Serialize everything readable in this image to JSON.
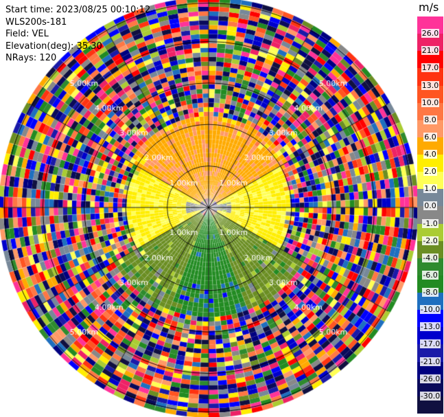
{
  "info": {
    "start_time": "Start time: 2023/08/25 00:10:12",
    "instrument": "WLS200s-181",
    "field": "Field: VEL",
    "elevation": "Elevation(deg): 35.30",
    "nrays": "NRays: 120"
  },
  "range_rings": [
    "1.00km",
    "2.00km",
    "3.00km",
    "4.00km",
    "5.00km"
  ],
  "legend": {
    "unit": "m/s",
    "ticks": [
      "26.0",
      "21.0",
      "17.0",
      "13.0",
      "10.0",
      "8.0",
      "6.0",
      "4.0",
      "2.0",
      "1.0",
      "0.0",
      "-1.0",
      "-2.0",
      "-4.0",
      "-6.0",
      "-8.0",
      "-10.0",
      "-13.0",
      "-17.0",
      "-21.0",
      "-26.0",
      "-30.0"
    ],
    "colors": [
      "#ff3399",
      "#ee2266",
      "#ff0000",
      "#ff3311",
      "#ff5522",
      "#ff7744",
      "#ff9966",
      "#ffaa00",
      "#ffee00",
      "#ffff55",
      "#778899",
      "#888888",
      "#aacc33",
      "#6b8e23",
      "#2e8b2e",
      "#228b22",
      "#1e6fbf",
      "#0000ff",
      "#0000cc",
      "#1a1aa8",
      "#000080",
      "#0a0a5a",
      "#101040"
    ]
  },
  "chart_data": {
    "type": "heatmap",
    "title": "",
    "nrays": 120,
    "ngates": 5,
    "max_range_km": 5.0,
    "near_field_pattern": [
      {
        "sector_deg": [
          300,
          60
        ],
        "range_km": [
          0.2,
          2.2
        ],
        "value_ms": 5.5
      },
      {
        "sector_deg": [
          240,
          300
        ],
        "range_km": [
          0.2,
          2.0
        ],
        "value_ms": 2.5
      },
      {
        "sector_deg": [
          60,
          120
        ],
        "range_km": [
          0.2,
          2.0
        ],
        "value_ms": 2.5
      },
      {
        "sector_deg": [
          75,
          105
        ],
        "range_km": [
          0.0,
          0.6
        ],
        "value_ms": 0.0
      },
      {
        "sector_deg": [
          255,
          285
        ],
        "range_km": [
          0.0,
          0.6
        ],
        "value_ms": 0.0
      },
      {
        "sector_deg": [
          120,
          160
        ],
        "range_km": [
          0.2,
          2.6
        ],
        "value_ms": -3.0
      },
      {
        "sector_deg": [
          160,
          200
        ],
        "range_km": [
          0.0,
          2.6
        ],
        "value_ms": -7.0
      },
      {
        "sector_deg": [
          200,
          240
        ],
        "range_km": [
          0.2,
          2.6
        ],
        "value_ms": -3.0
      }
    ],
    "far_field": "noise"
  }
}
